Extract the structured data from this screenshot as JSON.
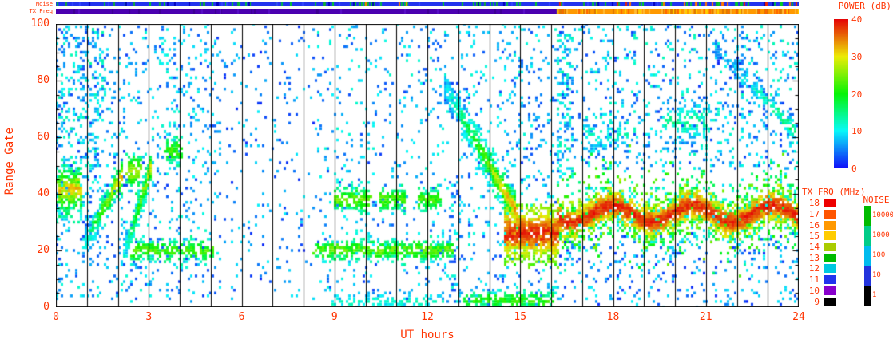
{
  "figure": {
    "strip_labels": {
      "noise": "Noise",
      "tx_freq": "TX Freq"
    },
    "xlabel": "UT hours",
    "ylabel": "Range Gate",
    "text_color": "#ff3300"
  },
  "power_legend": {
    "title": "POWER (dB)",
    "min": 0,
    "max": 40,
    "ticks": [
      40,
      30,
      20,
      10,
      0
    ]
  },
  "txfrq_legend": {
    "title": "TX FRQ (MHz)",
    "entries": [
      {
        "label": "18",
        "color": "#ee0000"
      },
      {
        "label": "17",
        "color": "#ff5500"
      },
      {
        "label": "16",
        "color": "#ff9900"
      },
      {
        "label": "15",
        "color": "#ffcc00"
      },
      {
        "label": "14",
        "color": "#aacc00"
      },
      {
        "label": "13",
        "color": "#00bb00"
      },
      {
        "label": "12",
        "color": "#00c8e0"
      },
      {
        "label": "11",
        "color": "#2233ee"
      },
      {
        "label": "10",
        "color": "#8800cc"
      },
      {
        "label": "9",
        "color": "#000000"
      }
    ]
  },
  "noise_legend": {
    "title": "NOISE",
    "labels": [
      "10000",
      "1000",
      "100",
      "10",
      "1"
    ],
    "colors": [
      "#00bb00",
      "#00cc88",
      "#00bbee",
      "#2233dd",
      "#000000"
    ]
  },
  "chart_data": {
    "type": "heatmap",
    "title": "",
    "xlabel": "UT hours",
    "ylabel": "Range Gate",
    "xlim": [
      0,
      24
    ],
    "ylim": [
      0,
      100
    ],
    "xticks": [
      0,
      3,
      6,
      9,
      12,
      15,
      18,
      21,
      24
    ],
    "yticks": [
      0,
      20,
      40,
      60,
      80,
      100
    ],
    "color_scale": {
      "label": "POWER (dB)",
      "min": 0,
      "max": 40,
      "palette": "rainbow-blue-to-red"
    },
    "hour_gridlines": [
      1,
      2,
      3,
      4,
      5,
      6,
      7,
      8,
      9,
      10,
      11,
      12,
      13,
      14,
      15,
      16,
      17,
      18,
      19,
      20,
      21,
      22,
      23
    ],
    "features_note": "Radar echo regions: t = UT hours, g = range gate, p = power dB (0=blue .. 40=red)",
    "features": [
      {
        "kind": "scatter",
        "t": [
          0,
          4.2
        ],
        "g": [
          2,
          100
        ],
        "n": 650,
        "p": [
          2,
          12
        ]
      },
      {
        "kind": "scatter",
        "t": [
          0,
          1.6
        ],
        "g": [
          40,
          100
        ],
        "n": 240,
        "p": [
          2,
          14
        ]
      },
      {
        "kind": "scatter",
        "t": [
          4.2,
          5.3
        ],
        "g": [
          2,
          100
        ],
        "n": 170,
        "p": [
          2,
          11
        ]
      },
      {
        "kind": "scatter",
        "t": [
          5.3,
          8.4
        ],
        "g": [
          2,
          100
        ],
        "n": 210,
        "p": [
          1,
          10
        ]
      },
      {
        "kind": "scatter",
        "t": [
          8.4,
          13.0
        ],
        "g": [
          2,
          100
        ],
        "n": 470,
        "p": [
          2,
          12
        ]
      },
      {
        "kind": "scatter",
        "t": [
          13.0,
          16.2
        ],
        "g": [
          45,
          100
        ],
        "n": 280,
        "p": [
          2,
          12
        ]
      },
      {
        "kind": "scatter",
        "t": [
          12.6,
          16.2
        ],
        "g": [
          0,
          45
        ],
        "n": 240,
        "p": [
          2,
          12
        ]
      },
      {
        "kind": "scatter",
        "t": [
          16.2,
          24
        ],
        "g": [
          48,
          100
        ],
        "n": 780,
        "p": [
          2,
          13
        ]
      },
      {
        "kind": "scatter",
        "t": [
          16.2,
          24
        ],
        "g": [
          0,
          26
        ],
        "n": 320,
        "p": [
          1,
          10
        ]
      },
      {
        "kind": "scatter",
        "t": [
          16.2,
          16.7
        ],
        "g": [
          45,
          100
        ],
        "n": 110,
        "p": [
          3,
          14
        ]
      },
      {
        "kind": "blob",
        "t": [
          0.05,
          0.85
        ],
        "g": [
          32,
          52
        ],
        "core": [
          38,
          45
        ],
        "n": 270,
        "p": [
          8,
          34
        ]
      },
      {
        "kind": "trace",
        "t": [
          0.9,
          2.15
        ],
        "g0": 22,
        "g1": 47,
        "w": 5,
        "n": 250,
        "p": [
          10,
          32
        ]
      },
      {
        "kind": "trace",
        "t": [
          2.15,
          3.1
        ],
        "g0": 17,
        "g1": 50,
        "w": 5,
        "n": 220,
        "p": [
          9,
          30
        ]
      },
      {
        "kind": "blob",
        "t": [
          2.3,
          2.75
        ],
        "g": [
          42,
          54
        ],
        "core": [
          45,
          51
        ],
        "n": 90,
        "p": [
          10,
          28
        ]
      },
      {
        "kind": "blob",
        "t": [
          3.55,
          4.05
        ],
        "g": [
          50,
          60
        ],
        "core": [
          53,
          58
        ],
        "n": 70,
        "p": [
          8,
          24
        ]
      },
      {
        "kind": "band",
        "t": [
          2.4,
          5.1
        ],
        "gc": 20,
        "sd": 2.2,
        "n": 230,
        "p": [
          6,
          25
        ]
      },
      {
        "kind": "band",
        "t": [
          8.35,
          12.85
        ],
        "gc": 20,
        "sd": 2.0,
        "n": 420,
        "p": [
          6,
          26
        ]
      },
      {
        "kind": "blob",
        "t": [
          9.0,
          10.15
        ],
        "g": [
          33,
          42
        ],
        "core": [
          36,
          40
        ],
        "n": 150,
        "p": [
          8,
          26
        ]
      },
      {
        "kind": "blob",
        "t": [
          10.45,
          11.3
        ],
        "g": [
          34,
          41
        ],
        "core": [
          36,
          40
        ],
        "n": 115,
        "p": [
          8,
          25
        ]
      },
      {
        "kind": "blob",
        "t": [
          11.7,
          12.4
        ],
        "g": [
          34,
          41
        ],
        "core": [
          36,
          40
        ],
        "n": 105,
        "p": [
          8,
          24
        ]
      },
      {
        "kind": "trace",
        "t": [
          12.55,
          14.9
        ],
        "g0": 78,
        "g1": 33,
        "w": 6,
        "n": 520,
        "p": [
          8,
          34
        ]
      },
      {
        "kind": "blob",
        "t": [
          14.5,
          16.25
        ],
        "g": [
          16,
          35
        ],
        "core": [
          21,
          31
        ],
        "n": 760,
        "p": [
          20,
          40
        ]
      },
      {
        "kind": "bandwave",
        "t": [
          16.2,
          24
        ],
        "gc": 33,
        "amp": 3,
        "per": 2.6,
        "sdCore": 2.6,
        "sdHalo": 6.5,
        "n": 2850,
        "nCore": 1550,
        "pCore": [
          25,
          40
        ],
        "pHalo": [
          8,
          26
        ]
      },
      {
        "kind": "trace",
        "t": [
          21.3,
          23.9
        ],
        "g0": 92,
        "g1": 62,
        "w": 4,
        "n": 190,
        "p": [
          5,
          17
        ]
      },
      {
        "kind": "blob",
        "t": [
          19.6,
          21.1
        ],
        "g": [
          57,
          73
        ],
        "core": [
          62,
          69
        ],
        "n": 140,
        "p": [
          4,
          16
        ]
      },
      {
        "kind": "blob",
        "t": [
          17.0,
          18.5
        ],
        "g": [
          54,
          67
        ],
        "core": [
          58,
          64
        ],
        "n": 90,
        "p": [
          3,
          14
        ]
      },
      {
        "kind": "band",
        "t": [
          13.2,
          16.1
        ],
        "gc": 2.5,
        "sd": 1.8,
        "n": 210,
        "p": [
          5,
          24
        ]
      },
      {
        "kind": "band",
        "t": [
          8.9,
          12.6
        ],
        "gc": 2,
        "sd": 1.5,
        "n": 110,
        "p": [
          3,
          14
        ]
      }
    ],
    "noise_strip": {
      "segments": [
        {
          "t": [
            0,
            24
          ],
          "color": "#2233ee"
        }
      ],
      "specks": [
        {
          "t": [
            0,
            24
          ],
          "n": 95,
          "colors": [
            "#00bb44",
            "#00cc22",
            "#11aa33"
          ]
        },
        {
          "t": [
            0,
            24
          ],
          "n": 45,
          "colors": [
            "#0000bb",
            "#3344ff"
          ]
        },
        {
          "t": [
            15.8,
            24
          ],
          "n": 20,
          "colors": [
            "#ff7700",
            "#ee2200"
          ]
        },
        {
          "t": [
            9.6,
            11.4
          ],
          "n": 3,
          "colors": [
            "#ff7700"
          ]
        }
      ]
    },
    "txfreq_strip": {
      "segments": [
        {
          "t": [
            0,
            16.2
          ],
          "color": "#4b00b0"
        },
        {
          "t": [
            16.2,
            24
          ],
          "color": "#ff9900"
        }
      ],
      "specks": [
        {
          "t": [
            16.2,
            24
          ],
          "n": 110,
          "colors": [
            "#ffd000",
            "#ff6600",
            "#dd7700",
            "#ffbb33"
          ]
        },
        {
          "t": [
            0,
            16.2
          ],
          "n": 25,
          "colors": [
            "#5a10c8",
            "#3c0090"
          ]
        }
      ]
    }
  }
}
